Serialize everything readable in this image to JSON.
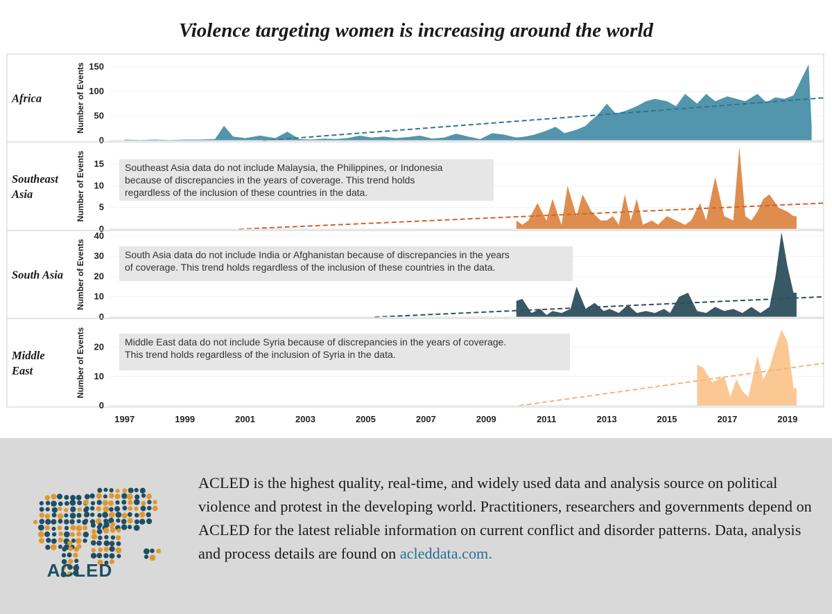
{
  "title": "Violence targeting women is increasing around the world",
  "y_axis_label": "Number of Events",
  "x_ticks": [
    "1997",
    "1999",
    "2001",
    "2003",
    "2005",
    "2007",
    "2009",
    "2011",
    "2013",
    "2015",
    "2017",
    "2019"
  ],
  "chart_data": [
    {
      "type": "area",
      "region": "Africa",
      "color": "#4a8fa8",
      "trend_color": "#2e7690",
      "ylim": [
        0,
        165
      ],
      "yticks": [
        "0",
        "50",
        "100",
        "150"
      ],
      "note": "",
      "x": [
        1997.0,
        1997.5,
        1998.0,
        1998.5,
        1999.0,
        1999.5,
        2000.0,
        2000.3,
        2000.6,
        2001.0,
        2001.5,
        2002.0,
        2002.4,
        2002.8,
        2003.2,
        2003.6,
        2004.0,
        2004.4,
        2004.8,
        2005.2,
        2005.6,
        2006.0,
        2006.4,
        2006.8,
        2007.2,
        2007.6,
        2008.0,
        2008.4,
        2008.8,
        2009.2,
        2009.6,
        2010.0,
        2010.3,
        2010.6,
        2011.0,
        2011.3,
        2011.6,
        2012.0,
        2012.3,
        2012.5,
        2012.7,
        2013.0,
        2013.3,
        2013.6,
        2014.0,
        2014.3,
        2014.6,
        2015.0,
        2015.3,
        2015.6,
        2016.0,
        2016.3,
        2016.6,
        2017.0,
        2017.3,
        2017.6,
        2018.0,
        2018.3,
        2018.6,
        2018.9,
        2019.2,
        2019.5,
        2019.7,
        2019.8
      ],
      "y": [
        2,
        1,
        2,
        1,
        2,
        2,
        3,
        30,
        8,
        5,
        10,
        5,
        18,
        3,
        2,
        4,
        3,
        5,
        10,
        6,
        8,
        5,
        7,
        10,
        4,
        6,
        14,
        8,
        3,
        15,
        12,
        6,
        8,
        12,
        20,
        28,
        15,
        22,
        30,
        42,
        52,
        75,
        55,
        60,
        70,
        80,
        85,
        80,
        70,
        95,
        75,
        95,
        80,
        90,
        85,
        80,
        95,
        78,
        88,
        85,
        92,
        130,
        155,
        30
      ],
      "trend": [
        [
          2001.6,
          0
        ],
        [
          2020.2,
          87
        ]
      ]
    },
    {
      "type": "area",
      "region": "Southeast Asia",
      "color": "#dd8746",
      "trend_color": "#d0642a",
      "ylim": [
        0,
        19
      ],
      "yticks": [
        "0",
        "5",
        "10",
        "15"
      ],
      "note": "Southeast Asia data do not include Malaysia, the Philippines, or Indonesia because of discrepancies in the years of coverage. This trend holds regardless of the inclusion of these countries in the data.",
      "x": [
        2010.0,
        2010.2,
        2010.4,
        2010.7,
        2011.0,
        2011.2,
        2011.5,
        2011.7,
        2012.0,
        2012.2,
        2012.5,
        2012.8,
        2013.0,
        2013.2,
        2013.4,
        2013.6,
        2013.8,
        2014.0,
        2014.2,
        2014.5,
        2014.7,
        2015.0,
        2015.3,
        2015.6,
        2015.8,
        2016.1,
        2016.3,
        2016.6,
        2016.9,
        2017.2,
        2017.4,
        2017.6,
        2017.8,
        2018.0,
        2018.2,
        2018.4,
        2018.7,
        2019.0,
        2019.2,
        2019.3
      ],
      "y": [
        2,
        1,
        2,
        6,
        2,
        7,
        1,
        10,
        3,
        8,
        4,
        2,
        2,
        3,
        1,
        8,
        2,
        7,
        1,
        2,
        1,
        3,
        2,
        1,
        2,
        6,
        2,
        12,
        3,
        2,
        19,
        3,
        2,
        4,
        7,
        8,
        5,
        4,
        3,
        3
      ],
      "trend": [
        [
          2000.8,
          0
        ],
        [
          2020.2,
          6
        ]
      ]
    },
    {
      "type": "area",
      "region": "South Asia",
      "color": "#2e4f5e",
      "trend_color": "#2e4f5e",
      "ylim": [
        0,
        41
      ],
      "yticks": [
        "0",
        "10",
        "20",
        "30",
        "40"
      ],
      "note": "South Asia data do not include India or Afghanistan because of discrepancies in the years of coverage. This trend holds regardless of the inclusion of these countries in the data.",
      "x": [
        2010.0,
        2010.2,
        2010.5,
        2010.8,
        2011.0,
        2011.2,
        2011.5,
        2011.8,
        2012.0,
        2012.3,
        2012.6,
        2012.9,
        2013.1,
        2013.4,
        2013.7,
        2014.0,
        2014.3,
        2014.6,
        2014.9,
        2015.1,
        2015.4,
        2015.7,
        2016.0,
        2016.3,
        2016.6,
        2016.9,
        2017.2,
        2017.5,
        2017.8,
        2018.1,
        2018.4,
        2018.6,
        2018.8,
        2019.0,
        2019.2,
        2019.3
      ],
      "y": [
        8,
        9,
        2,
        4,
        1,
        3,
        2,
        4,
        15,
        4,
        7,
        3,
        4,
        2,
        6,
        2,
        3,
        2,
        4,
        2,
        10,
        12,
        3,
        2,
        5,
        3,
        4,
        2,
        5,
        2,
        5,
        20,
        42,
        25,
        12,
        12
      ],
      "trend": [
        [
          2005.3,
          0
        ],
        [
          2020.2,
          10
        ]
      ]
    },
    {
      "type": "area",
      "region": "Middle East",
      "color": "#fbc58e",
      "trend_color": "#f5b47a",
      "ylim": [
        0,
        27
      ],
      "yticks": [
        "0",
        "10",
        "20"
      ],
      "note": "Middle East data do not include Syria because of discrepancies in the years of coverage. This trend holds regardless of the inclusion of Syria in the data.",
      "x": [
        2016.0,
        2016.2,
        2016.5,
        2016.7,
        2016.9,
        2017.1,
        2017.3,
        2017.5,
        2017.7,
        2018.0,
        2018.2,
        2018.4,
        2018.6,
        2018.8,
        2019.0,
        2019.2,
        2019.3
      ],
      "y": [
        14,
        13,
        8,
        9,
        10,
        3,
        9,
        5,
        3,
        17,
        9,
        13,
        20,
        26,
        22,
        6,
        6
      ],
      "trend": [
        [
          2010.1,
          0
        ],
        [
          2020.2,
          14.5
        ]
      ]
    }
  ],
  "footer": {
    "logo_text": "ACLED",
    "about_text": "ACLED is the highest quality, real-time, and widely used data and analysis source on political violence and protest in the developing world. Practitioners, researchers and governments depend on ACLED for the latest reliable information on current conflict and disorder patterns. Data, analysis and process details are found on ",
    "link_text": "acleddata.com."
  }
}
